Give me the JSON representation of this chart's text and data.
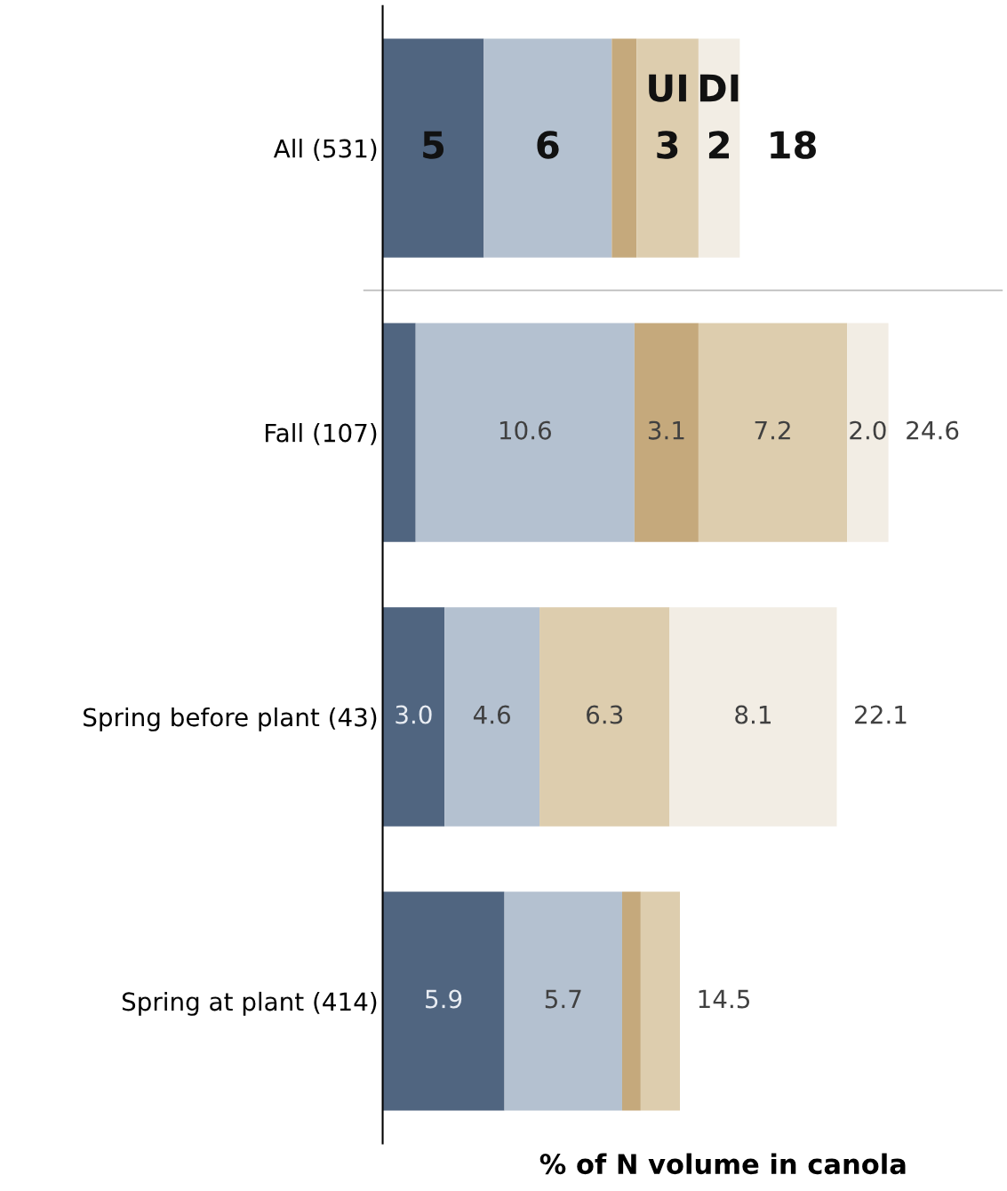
{
  "chart_data": {
    "type": "bar",
    "orientation": "horizontal",
    "stacked": true,
    "xlabel": "% of N volume in canola",
    "categories": [
      "All (531)",
      "Fall (107)",
      "Spring before plant (43)",
      "Spring at plant (414)"
    ],
    "series": [
      {
        "color": "#506580",
        "values": [
          4.9,
          1.6,
          3.0,
          5.9
        ],
        "value_labels": [
          "5",
          null,
          "3.0",
          "5.9"
        ]
      },
      {
        "color": "#b4c1d0",
        "values": [
          6.2,
          10.6,
          4.6,
          5.7
        ],
        "value_labels": [
          "6",
          "10.6",
          "4.6",
          "5.7"
        ]
      },
      {
        "color": "#c5a97c",
        "values": [
          1.2,
          3.1,
          null,
          0.9
        ],
        "value_labels": [
          null,
          "3.1",
          null,
          null
        ]
      },
      {
        "name": "UI",
        "color": "#ddcdae",
        "values": [
          3.0,
          7.2,
          6.3,
          1.9
        ],
        "value_labels": [
          "3",
          "7.2",
          "6.3",
          null
        ]
      },
      {
        "name": "DI",
        "color": "#f2ede4",
        "values": [
          2.0,
          2.0,
          8.1,
          null
        ],
        "value_labels": [
          "2",
          "2.0",
          "8.1",
          null
        ]
      }
    ],
    "totals": [
      "18",
      "24.6",
      "22.1",
      "14.5"
    ],
    "xlim": [
      0,
      30
    ],
    "tick_labels": "y",
    "grid": false,
    "legend": false
  }
}
